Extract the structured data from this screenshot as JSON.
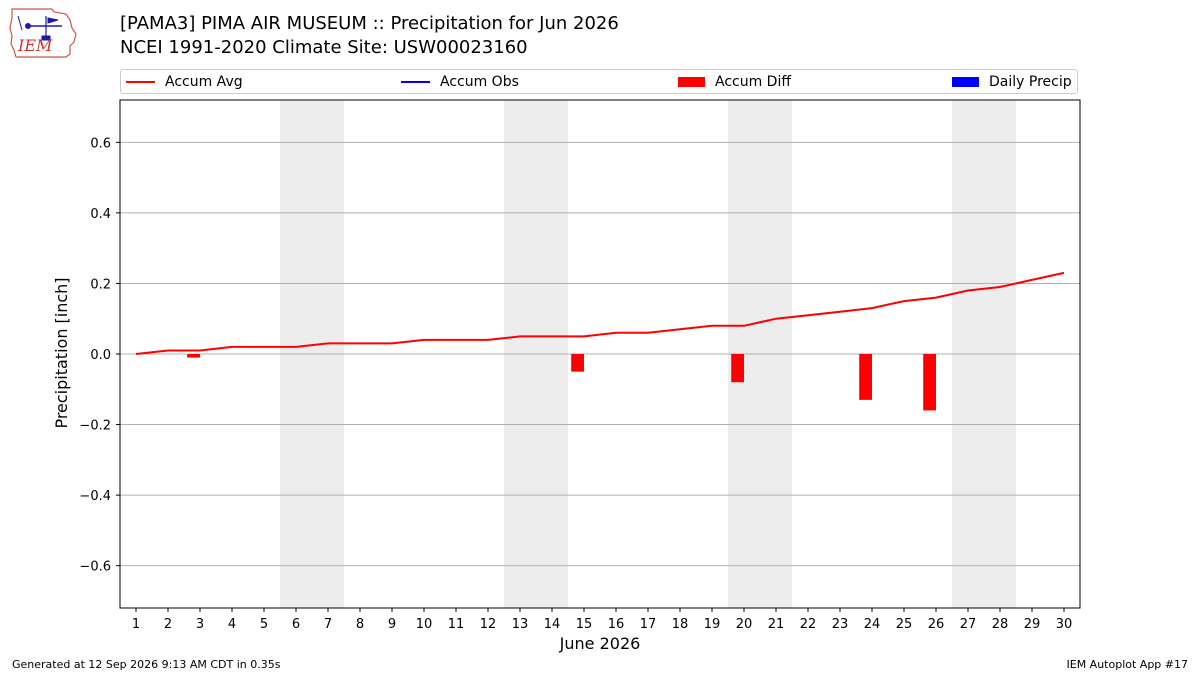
{
  "logo": {
    "text": "IEM"
  },
  "header": {
    "title": "[PAMA3] PIMA AIR MUSEUM :: Precipitation for Jun 2026",
    "subtitle": "NCEI 1991-2020 Climate Site: USW00023160"
  },
  "legend": {
    "placement": "top",
    "items": [
      {
        "label": "Accum Avg",
        "kind": "line",
        "color": "#ff0000"
      },
      {
        "label": "Accum Obs",
        "kind": "line",
        "color": "#0000ff"
      },
      {
        "label": "Accum Diff",
        "kind": "bar",
        "color": "#ff0000"
      },
      {
        "label": "Daily Precip",
        "kind": "bar",
        "color": "#0000ff"
      }
    ]
  },
  "chart_data": {
    "type": "line",
    "xlabel": "June 2026",
    "ylabel": "Precipitation [inch]",
    "xlim": [
      0.5,
      30.5
    ],
    "ylim": [
      -0.72,
      0.72
    ],
    "yticks": [
      -0.6,
      -0.4,
      -0.2,
      0.0,
      0.2,
      0.4,
      0.6
    ],
    "ytick_labels": [
      "−0.6",
      "−0.4",
      "−0.2",
      "0.0",
      "0.2",
      "0.4",
      "0.6"
    ],
    "x": [
      1,
      2,
      3,
      4,
      5,
      6,
      7,
      8,
      9,
      10,
      11,
      12,
      13,
      14,
      15,
      16,
      17,
      18,
      19,
      20,
      21,
      22,
      23,
      24,
      25,
      26,
      27,
      28,
      29,
      30
    ],
    "weekend_days": [
      6,
      7,
      13,
      14,
      20,
      21,
      27,
      28
    ],
    "grid": "horizontal",
    "series": [
      {
        "name": "Accum Avg",
        "type": "line",
        "color": "#ff0000",
        "values": [
          0.0,
          0.01,
          0.01,
          0.02,
          0.02,
          0.02,
          0.03,
          0.03,
          0.03,
          0.04,
          0.04,
          0.04,
          0.05,
          0.05,
          0.05,
          0.06,
          0.06,
          0.07,
          0.08,
          0.08,
          0.1,
          0.11,
          0.12,
          0.13,
          0.15,
          0.16,
          0.18,
          0.19,
          0.21,
          0.23
        ]
      },
      {
        "name": "Accum Diff",
        "type": "bar",
        "color": "#ff0000",
        "x": [
          2.8,
          14.8,
          19.8,
          23.8,
          25.8
        ],
        "values": [
          -0.01,
          -0.05,
          -0.08,
          -0.13,
          -0.16
        ]
      }
    ]
  },
  "footer": {
    "generated": "Generated at 12 Sep 2026 9:13 AM CDT in 0.35s",
    "app": "IEM Autoplot App #17"
  }
}
